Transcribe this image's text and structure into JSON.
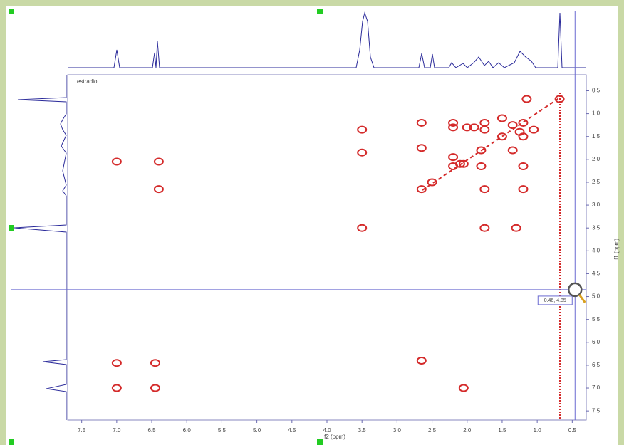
{
  "chart_data": {
    "type": "scatter",
    "title": "estradiol",
    "xlabel": "f2 (ppm)",
    "ylabel": "f1 (ppm)",
    "xlim": [
      7.7,
      0.3
    ],
    "ylim": [
      0.15,
      7.7
    ],
    "xticks": [
      7.5,
      {
        "value": 7,
        "label": "7.0"
      },
      6.5,
      {
        "value": 6,
        "label": "6.0"
      },
      5.5,
      {
        "value": 5,
        "label": "5.0"
      },
      4.5,
      {
        "value": 4,
        "label": "4.0"
      },
      3.5,
      {
        "value": 3,
        "label": "3.0"
      },
      2.5,
      {
        "value": 2,
        "label": "2.0"
      },
      1.5,
      {
        "value": 1,
        "label": "1.0"
      },
      0.5
    ],
    "yticks": [
      0.5,
      {
        "value": 1,
        "label": "1.0"
      },
      1.5,
      {
        "value": 2,
        "label": "2.0"
      },
      2.5,
      {
        "value": 3,
        "label": "3.0"
      },
      3.5,
      {
        "value": 4,
        "label": "4.0"
      },
      4.5,
      {
        "value": 5,
        "label": "5.0"
      },
      5.5,
      {
        "value": 6,
        "label": "6.0"
      },
      6.5,
      {
        "value": 7,
        "label": "7.0"
      },
      7.5
    ],
    "cursor": {
      "x": 0.46,
      "y": 4.85,
      "label": "0.46, 4.85"
    },
    "series": [
      {
        "color": "#d42a2a",
        "x": [
          0.68,
          1.2,
          1.5,
          1.8,
          2.1,
          2.5,
          2.65,
          3.5,
          6.45,
          7.0,
          3.5,
          3.5,
          2.65,
          2.65,
          1.15,
          1.75,
          1.2,
          1.75,
          1.3,
          2.2,
          2.2,
          2.0,
          1.9,
          1.75,
          1.75,
          1.5,
          1.35,
          1.25,
          1.2,
          1.2,
          1.05,
          2.2,
          2.2,
          2.05,
          1.8,
          1.35,
          7.0,
          6.45,
          7.0,
          6.4,
          6.4,
          2.65,
          2.05
        ],
        "values": [
          0.68,
          1.2,
          1.5,
          1.8,
          2.1,
          2.5,
          2.65,
          3.5,
          6.45,
          7.0,
          1.35,
          1.85,
          1.2,
          1.75,
          0.68,
          2.65,
          2.65,
          3.5,
          3.5,
          1.2,
          1.3,
          1.3,
          1.3,
          1.2,
          1.35,
          1.1,
          1.25,
          1.4,
          1.5,
          2.15,
          1.35,
          1.95,
          2.15,
          2.1,
          2.15,
          1.8,
          6.45,
          7.0,
          2.05,
          2.65,
          2.05,
          6.4,
          7.0
        ]
      }
    ]
  }
}
